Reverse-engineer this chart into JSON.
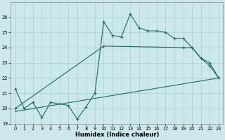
{
  "xlabel": "Humidex (Indice chaleur)",
  "background_color": "#cde8ec",
  "grid_color": "#aacdd4",
  "line_color": "#1a6b5a",
  "x_values": [
    0,
    1,
    2,
    3,
    4,
    5,
    6,
    7,
    8,
    9,
    10,
    11,
    12,
    13,
    14,
    15,
    16,
    17,
    18,
    19,
    20,
    21,
    22,
    23
  ],
  "line1_y": [
    21.3,
    20.0,
    20.4,
    19.4,
    20.4,
    20.3,
    20.2,
    19.3,
    20.1,
    21.0,
    25.7,
    24.8,
    24.7,
    26.2,
    25.3,
    25.1,
    25.1,
    25.0,
    24.6,
    24.6,
    24.0,
    23.3,
    23.0,
    22.0
  ],
  "line2_x": [
    0,
    10,
    19,
    20,
    21,
    22,
    23
  ],
  "line2_y": [
    20.0,
    24.1,
    24.0,
    24.0,
    23.3,
    22.8,
    22.0
  ],
  "line3_x": [
    0,
    23
  ],
  "line3_y": [
    19.8,
    22.0
  ],
  "ylim": [
    19,
    27
  ],
  "xlim": [
    -0.5,
    23.5
  ],
  "yticks": [
    19,
    20,
    21,
    22,
    23,
    24,
    25,
    26
  ],
  "xticks": [
    0,
    1,
    2,
    3,
    4,
    5,
    6,
    7,
    8,
    9,
    10,
    11,
    12,
    13,
    14,
    15,
    16,
    17,
    18,
    19,
    20,
    21,
    22,
    23
  ],
  "xlabel_fontsize": 6.0,
  "tick_fontsize": 4.8
}
